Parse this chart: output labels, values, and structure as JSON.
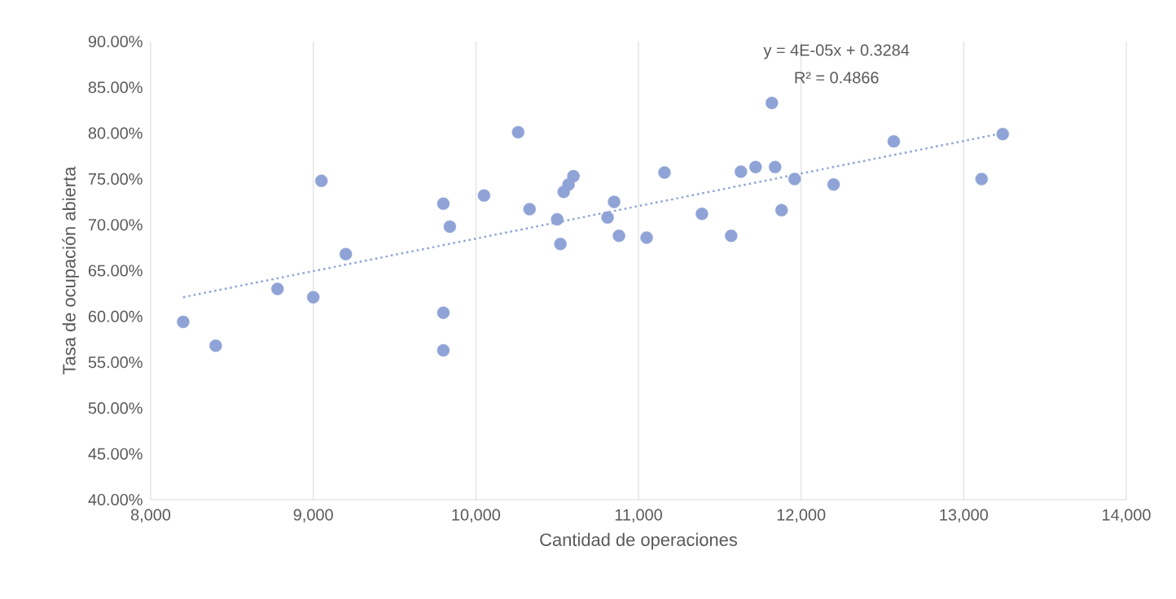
{
  "chart_data": {
    "type": "scatter",
    "xlabel": "Cantidad de operaciones",
    "ylabel": "Tasa de ocupación abierta",
    "annotations": [
      "y = 4E-05x + 0.3284",
      "R² = 0.4866"
    ],
    "xlim": [
      8000,
      14000
    ],
    "ylim": [
      40,
      90
    ],
    "xticks": [
      {
        "value": 8000,
        "label": "8,000"
      },
      {
        "value": 9000,
        "label": "9,000"
      },
      {
        "value": 10000,
        "label": "10,000"
      },
      {
        "value": 11000,
        "label": "11,000"
      },
      {
        "value": 12000,
        "label": "12,000"
      },
      {
        "value": 13000,
        "label": "13,000"
      },
      {
        "value": 14000,
        "label": "14,000"
      }
    ],
    "yticks": [
      {
        "value": 40,
        "label": "40.00%"
      },
      {
        "value": 45,
        "label": "45.00%"
      },
      {
        "value": 50,
        "label": "50.00%"
      },
      {
        "value": 55,
        "label": "55.00%"
      },
      {
        "value": 60,
        "label": "60.00%"
      },
      {
        "value": 65,
        "label": "65.00%"
      },
      {
        "value": 70,
        "label": "70.00%"
      },
      {
        "value": 75,
        "label": "75.00%"
      },
      {
        "value": 80,
        "label": "80.00%"
      },
      {
        "value": 85,
        "label": "85.00%"
      },
      {
        "value": 90,
        "label": "90.00%"
      }
    ],
    "grid": "x",
    "series": [
      {
        "color": "#8fa3d6",
        "marker": "circle",
        "x": [
          8200,
          8400,
          8780,
          9000,
          9050,
          9200,
          9800,
          9800,
          9800,
          9840,
          10050,
          10260,
          10330,
          10500,
          10520,
          10540,
          10570,
          10600,
          10810,
          10850,
          10880,
          11050,
          11160,
          11390,
          11570,
          11630,
          11720,
          11820,
          11840,
          11880,
          11960,
          12200,
          12570,
          13110,
          13240
        ],
        "values": [
          59.4,
          56.8,
          63.0,
          62.1,
          74.8,
          66.8,
          72.3,
          60.4,
          56.3,
          69.8,
          73.2,
          80.1,
          71.7,
          70.6,
          67.9,
          73.6,
          74.4,
          75.3,
          70.8,
          72.5,
          68.8,
          68.6,
          75.7,
          71.2,
          68.8,
          75.8,
          76.3,
          83.3,
          76.3,
          71.6,
          75.0,
          74.4,
          79.1,
          75.0,
          79.9
        ]
      },
      {
        "type": "line",
        "color": "#8fa3d6",
        "marker": "none",
        "line_style": "dotted",
        "x": [
          8200,
          13240
        ],
        "values": [
          62.1,
          80.0
        ]
      }
    ]
  }
}
